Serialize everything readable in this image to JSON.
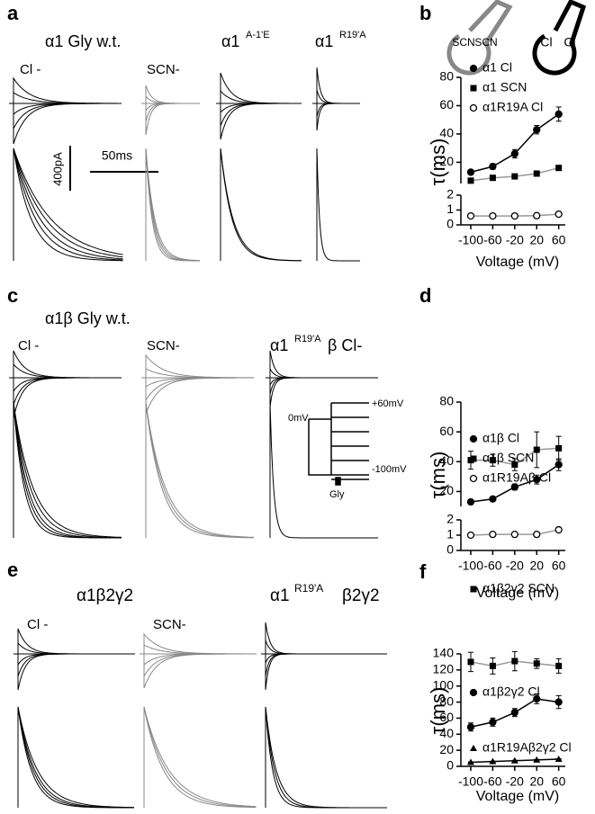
{
  "trace_panels": [
    {
      "letter": "a",
      "texts": [
        "α1 Gly w.t.",
        "Cl -",
        "SCN-",
        "α1",
        "A-1'E",
        "α1",
        "R19'A"
      ]
    },
    {
      "letter": "c",
      "texts": [
        "α1β Gly w.t.",
        "Cl -",
        "SCN-",
        "α1",
        "R19'A",
        "β Cl-"
      ]
    },
    {
      "letter": "e",
      "texts": [
        "α1β2γ2",
        "Cl -",
        "SCN-",
        "α1",
        "R19'A",
        "β2γ2"
      ]
    }
  ],
  "scale_bar": {
    "current": "400pA",
    "time": "50ms"
  },
  "protocol": {
    "labels": [
      "+60mV",
      "0mV",
      "-100mV",
      "Gly"
    ]
  },
  "icons": [
    "SCN",
    "SCN",
    "Cl",
    "Cl"
  ],
  "chart_data": [
    {
      "type": "line",
      "panel": "b",
      "xlabel": "Voltage (mV)",
      "ylabel": "τ(ms)",
      "legend": "upper left",
      "x": [
        -100,
        -60,
        -20,
        20,
        60
      ],
      "xlim": [
        -118,
        72
      ],
      "xticks": [
        -100,
        -60,
        -20,
        20,
        60
      ],
      "segments": [
        {
          "ylim": [
            0,
            2
          ],
          "yticks": [
            0,
            1,
            2
          ]
        },
        {
          "ylim": [
            5,
            80
          ],
          "yticks": [
            20,
            40,
            60,
            80
          ]
        }
      ],
      "series": [
        {
          "name": "α1 Cl",
          "marker": "circle",
          "color": "#000000",
          "segment": 1,
          "values": [
            13,
            17,
            26,
            43,
            54
          ],
          "errors": [
            1,
            2,
            3,
            3,
            5
          ]
        },
        {
          "name": "α1 SCN",
          "marker": "square",
          "color": "#999999",
          "segment": 1,
          "values": [
            7,
            9,
            10,
            12,
            16
          ],
          "errors": [
            0.5,
            0.5,
            0.7,
            0.8,
            1
          ]
        },
        {
          "name": "α1R19A Cl",
          "marker": "open-circle",
          "color": "#999999",
          "segment": 0,
          "values": [
            0.6,
            0.6,
            0.6,
            0.62,
            0.72
          ],
          "errors": [
            0.03,
            0.03,
            0.03,
            0.1,
            0.04
          ]
        }
      ]
    },
    {
      "type": "line",
      "panel": "d",
      "xlabel": "Voltage (mV)",
      "ylabel": "τ(ms)",
      "legend": "upper left",
      "x": [
        -100,
        -60,
        -20,
        20,
        60
      ],
      "xlim": [
        -118,
        72
      ],
      "xticks": [
        -100,
        -60,
        -20,
        20,
        60
      ],
      "segments": [
        {
          "ylim": [
            0,
            2
          ],
          "yticks": [
            0,
            1,
            2
          ]
        },
        {
          "ylim": [
            10,
            80
          ],
          "yticks": [
            20,
            40,
            60,
            80
          ]
        }
      ],
      "series": [
        {
          "name": "α1β Cl",
          "marker": "circle",
          "color": "#000000",
          "segment": 1,
          "values": [
            13,
            15,
            23,
            28,
            38
          ],
          "errors": [
            1,
            1,
            2,
            3,
            4
          ]
        },
        {
          "name": "α1β SCN",
          "marker": "square",
          "color": "#999999",
          "segment": 1,
          "values": [
            41,
            41,
            38,
            48,
            49
          ],
          "errors": [
            6,
            4,
            4,
            12,
            8
          ]
        },
        {
          "name": "α1R19Aβ Cl",
          "marker": "open-circle",
          "color": "#999999",
          "segment": 0,
          "values": [
            1,
            1.05,
            1.05,
            1.05,
            1.35
          ],
          "errors": [
            0.05,
            0.05,
            0.05,
            0.12,
            0.05
          ]
        }
      ]
    },
    {
      "type": "line",
      "panel": "f",
      "xlabel": "Voltage (mV)",
      "ylabel": "τ(ms)",
      "legend": "upper left",
      "x": [
        -100,
        -60,
        -20,
        20,
        60
      ],
      "xlim": [
        -118,
        72
      ],
      "xticks": [
        -100,
        -60,
        -20,
        20,
        60
      ],
      "segments": [
        {
          "ylim": [
            0,
            140
          ],
          "yticks": [
            0,
            20,
            40,
            60,
            80,
            100,
            120,
            140
          ]
        }
      ],
      "series": [
        {
          "name": "α1β2γ2 SCN",
          "marker": "square",
          "color": "#999999",
          "segment": 0,
          "values": [
            130,
            125,
            131,
            128,
            125
          ],
          "errors": [
            12,
            10,
            12,
            6,
            9
          ]
        },
        {
          "name": "α1β2γ2 Cl",
          "marker": "circle",
          "color": "#000000",
          "segment": 0,
          "values": [
            49,
            55,
            67,
            84,
            80
          ],
          "errors": [
            5,
            5,
            5,
            6,
            8
          ]
        },
        {
          "name": "α1R19Aβ2γ2 Cl",
          "marker": "triangle",
          "color": "#000000",
          "segment": 0,
          "values": [
            5,
            6,
            7,
            8,
            9
          ],
          "errors": [
            0.5,
            0.5,
            0.5,
            0.5,
            0.5
          ]
        }
      ]
    }
  ]
}
